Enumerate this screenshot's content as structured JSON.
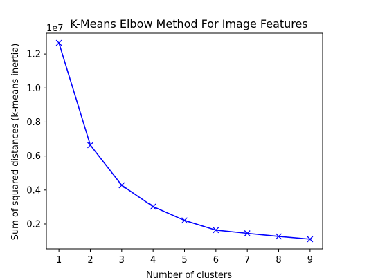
{
  "chart_data": {
    "type": "line",
    "title": "K-Means Elbow Method For Image Features",
    "xlabel": "Number of clusters",
    "ylabel": "Sum of squared distances (k-means inertia)",
    "y_offset_label": "1e7",
    "x": [
      1,
      2,
      3,
      4,
      5,
      6,
      7,
      8,
      9
    ],
    "series": [
      {
        "values": [
          12650000,
          6640000,
          4280000,
          3020000,
          2210000,
          1640000,
          1450000,
          1270000,
          1110000
        ],
        "color": "#0000ff",
        "marker": "x"
      }
    ],
    "xticks": [
      1,
      2,
      3,
      4,
      5,
      6,
      7,
      8,
      9
    ],
    "yticks": [
      2000000,
      4000000,
      6000000,
      8000000,
      10000000,
      12000000
    ],
    "ytick_labels": [
      "0.2",
      "0.4",
      "0.6",
      "0.8",
      "1.0",
      "1.2"
    ],
    "xlim": [
      0.6,
      9.4
    ],
    "ylim": [
      535000,
      13225000
    ],
    "grid": false
  }
}
